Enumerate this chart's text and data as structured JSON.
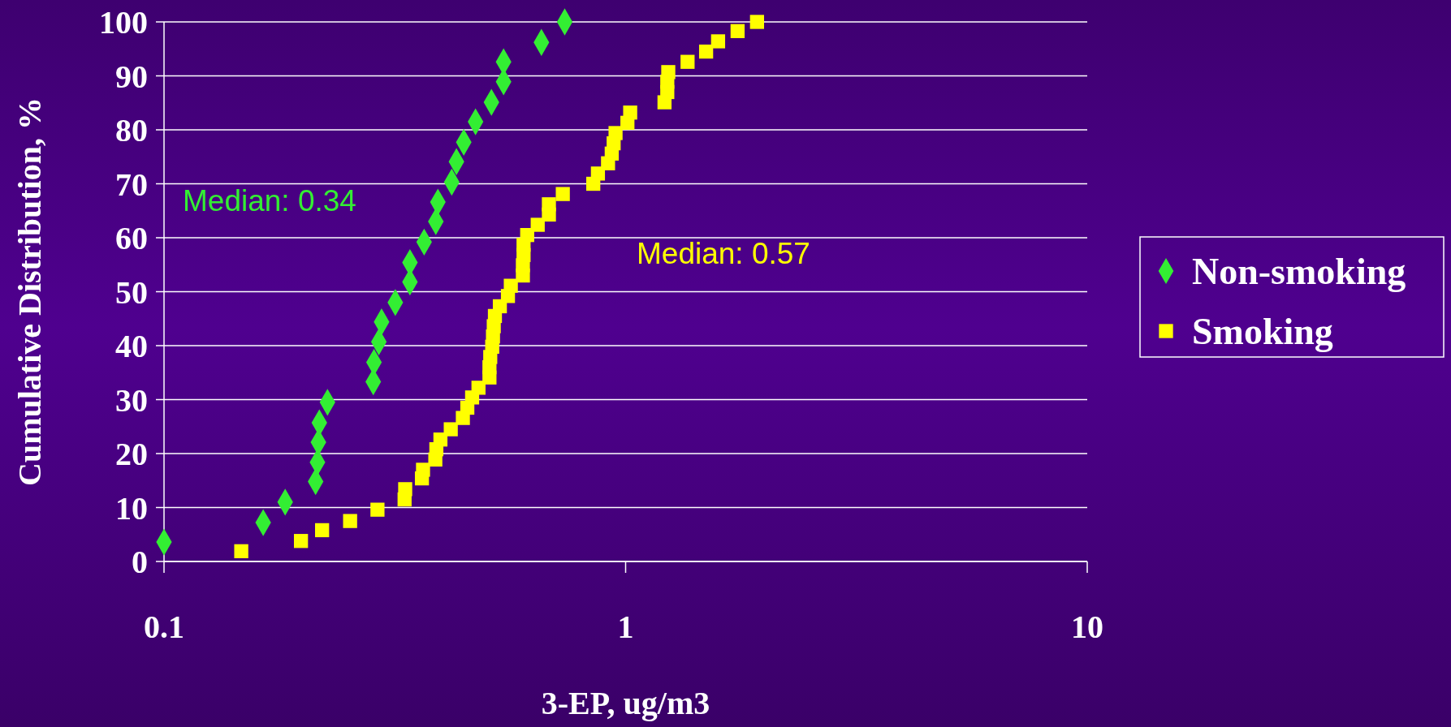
{
  "chart_data": {
    "type": "scatter",
    "xlabel": "3-EP, ug/m3",
    "ylabel": "Cumulative Distribution, %",
    "log": "x",
    "xlim": [
      0.1,
      10
    ],
    "xticks": [
      0.1,
      1,
      10
    ],
    "ylim": [
      0,
      100
    ],
    "yticks": [
      0,
      10,
      20,
      30,
      40,
      50,
      60,
      70,
      80,
      90,
      100
    ],
    "grid": "y",
    "legend": "right",
    "annotations": [
      "Median: 0.34",
      "Median: 0.57"
    ],
    "series": [
      {
        "name": "Non-smoking",
        "color": "#33ee33",
        "marker": "diamond",
        "x": [
          0.1,
          0.164,
          0.183,
          0.213,
          0.215,
          0.216,
          0.217,
          0.226,
          0.284,
          0.285,
          0.292,
          0.296,
          0.317,
          0.341,
          0.341,
          0.366,
          0.388,
          0.392,
          0.42,
          0.43,
          0.446,
          0.473,
          0.512,
          0.544,
          0.544,
          0.657,
          0.738
        ],
        "values": [
          3.6,
          7.2,
          11,
          14.8,
          18.4,
          22.1,
          25.7,
          29.5,
          33.3,
          36.9,
          40.7,
          44.4,
          48,
          51.8,
          55.4,
          59.2,
          63,
          66.6,
          70.3,
          74.1,
          77.7,
          81.5,
          85.1,
          88.9,
          92.6,
          96.2,
          100
        ]
      },
      {
        "name": "Smoking",
        "color": "#ffff00",
        "marker": "square",
        "x": [
          0.147,
          0.198,
          0.22,
          0.253,
          0.29,
          0.332,
          0.333,
          0.362,
          0.364,
          0.387,
          0.389,
          0.397,
          0.418,
          0.444,
          0.454,
          0.465,
          0.48,
          0.507,
          0.507,
          0.509,
          0.514,
          0.516,
          0.518,
          0.521,
          0.534,
          0.556,
          0.564,
          0.599,
          0.599,
          0.601,
          0.601,
          0.612,
          0.645,
          0.682,
          0.682,
          0.731,
          0.851,
          0.871,
          0.916,
          0.933,
          0.942,
          0.951,
          1.009,
          1.023,
          1.214,
          1.231,
          1.231,
          1.237,
          1.362,
          1.494,
          1.586,
          1.748,
          1.926
        ],
        "values": [
          1.9,
          3.8,
          5.8,
          7.5,
          9.6,
          11.5,
          13.4,
          15.4,
          17,
          18.9,
          20.8,
          22.6,
          24.5,
          26.6,
          28.5,
          30.4,
          32.2,
          34.1,
          36,
          37.9,
          39.8,
          41.7,
          43.6,
          45.5,
          47.3,
          49.2,
          51.1,
          53,
          54.9,
          56.8,
          58.7,
          60.5,
          62.4,
          64.3,
          66.2,
          68.1,
          70,
          71.9,
          73.8,
          75.6,
          77.5,
          79.4,
          81.3,
          83.2,
          85.1,
          87,
          88.9,
          90.7,
          92.6,
          94.5,
          96.4,
          98.3,
          100
        ]
      }
    ]
  }
}
